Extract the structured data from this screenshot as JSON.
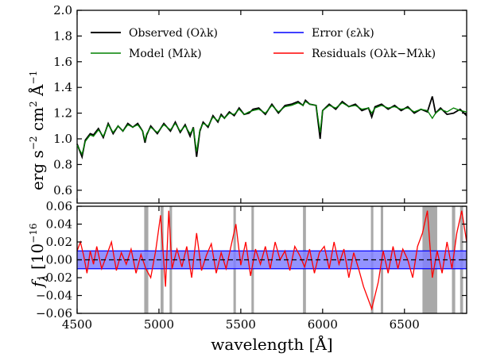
{
  "chart_data": [
    {
      "type": "line",
      "panel": "top",
      "xlim": [
        4500,
        6880
      ],
      "ylim": [
        0.5,
        2.0
      ],
      "ylabel": "erg s−2 cm2 Å−1",
      "ylabel_parts": {
        "unit_erg": "erg s",
        "exp_s": "−2",
        "unit_cm": " cm",
        "exp_cm": "2",
        "unit_A": "  Å",
        "exp_A": "−1"
      },
      "yticks": [
        0.6,
        0.8,
        1.0,
        1.2,
        1.4,
        1.6,
        1.8,
        2.0
      ],
      "ytick_labels": [
        "0.6",
        "0.8",
        "1.0",
        "1.2",
        "1.4",
        "1.6",
        "1.8",
        "2.0"
      ],
      "legend": {
        "placement": "top",
        "entries": [
          {
            "label": "Observed (Oλk)",
            "color": "#000000"
          },
          {
            "label": "Error (ελk)",
            "color": "#0000ff"
          },
          {
            "label": "Model (Mλk)",
            "color": "#008000"
          },
          {
            "label": "Residuals (Oλk−Mλk)",
            "color": "#ff0000"
          }
        ]
      },
      "series": [
        {
          "name": "Observed",
          "color": "#000000",
          "x": [
            4500,
            4530,
            4550,
            4580,
            4600,
            4630,
            4660,
            4690,
            4720,
            4750,
            4780,
            4810,
            4840,
            4870,
            4900,
            4915,
            4925,
            4950,
            4990,
            5030,
            5070,
            5100,
            5130,
            5160,
            5190,
            5210,
            5230,
            5250,
            5270,
            5300,
            5330,
            5360,
            5380,
            5400,
            5430,
            5460,
            5490,
            5520,
            5550,
            5575,
            5610,
            5650,
            5690,
            5730,
            5770,
            5810,
            5850,
            5880,
            5895,
            5920,
            5960,
            5985,
            6000,
            6040,
            6080,
            6120,
            6160,
            6200,
            6240,
            6280,
            6300,
            6320,
            6360,
            6400,
            6440,
            6480,
            6520,
            6560,
            6600,
            6640,
            6670,
            6690,
            6720,
            6760,
            6800,
            6840,
            6880
          ],
          "y": [
            0.96,
            0.86,
            0.99,
            1.04,
            1.03,
            1.08,
            1.01,
            1.12,
            1.04,
            1.1,
            1.06,
            1.12,
            1.09,
            1.12,
            1.06,
            0.97,
            1.03,
            1.1,
            1.04,
            1.12,
            1.06,
            1.13,
            1.05,
            1.11,
            1.02,
            1.09,
            0.86,
            1.06,
            1.13,
            1.09,
            1.18,
            1.13,
            1.19,
            1.16,
            1.21,
            1.18,
            1.24,
            1.19,
            1.2,
            1.23,
            1.24,
            1.19,
            1.27,
            1.2,
            1.26,
            1.27,
            1.29,
            1.26,
            1.3,
            1.27,
            1.26,
            1.0,
            1.22,
            1.27,
            1.23,
            1.29,
            1.25,
            1.27,
            1.22,
            1.24,
            1.17,
            1.25,
            1.27,
            1.23,
            1.26,
            1.22,
            1.25,
            1.2,
            1.23,
            1.21,
            1.33,
            1.2,
            1.24,
            1.19,
            1.2,
            1.23,
            1.18
          ]
        },
        {
          "name": "Model",
          "color": "#008000",
          "x": [
            4500,
            4530,
            4550,
            4580,
            4600,
            4630,
            4660,
            4690,
            4720,
            4750,
            4780,
            4810,
            4840,
            4870,
            4900,
            4915,
            4925,
            4950,
            4990,
            5030,
            5070,
            5100,
            5130,
            5160,
            5190,
            5210,
            5230,
            5250,
            5270,
            5300,
            5330,
            5360,
            5380,
            5400,
            5430,
            5460,
            5490,
            5520,
            5550,
            5575,
            5610,
            5650,
            5690,
            5730,
            5770,
            5810,
            5850,
            5880,
            5895,
            5920,
            5960,
            5985,
            6000,
            6040,
            6080,
            6120,
            6160,
            6200,
            6240,
            6280,
            6300,
            6320,
            6360,
            6400,
            6440,
            6480,
            6520,
            6560,
            6600,
            6640,
            6670,
            6690,
            6720,
            6760,
            6800,
            6840,
            6880
          ],
          "y": [
            0.95,
            0.88,
            0.98,
            1.03,
            1.02,
            1.07,
            1.02,
            1.11,
            1.05,
            1.1,
            1.06,
            1.11,
            1.09,
            1.11,
            1.06,
            0.99,
            1.04,
            1.09,
            1.05,
            1.11,
            1.07,
            1.12,
            1.06,
            1.1,
            1.04,
            1.08,
            0.9,
            1.07,
            1.12,
            1.1,
            1.17,
            1.14,
            1.18,
            1.16,
            1.2,
            1.19,
            1.23,
            1.19,
            1.21,
            1.22,
            1.23,
            1.2,
            1.26,
            1.21,
            1.25,
            1.26,
            1.28,
            1.26,
            1.29,
            1.27,
            1.26,
            1.05,
            1.22,
            1.26,
            1.24,
            1.28,
            1.25,
            1.26,
            1.23,
            1.24,
            1.2,
            1.24,
            1.26,
            1.24,
            1.25,
            1.23,
            1.24,
            1.21,
            1.23,
            1.22,
            1.16,
            1.2,
            1.23,
            1.21,
            1.24,
            1.22,
            1.21
          ]
        }
      ]
    },
    {
      "type": "line",
      "panel": "bottom",
      "xlim": [
        4500,
        6880
      ],
      "ylim": [
        -0.06,
        0.06
      ],
      "xlabel": "wavelength [Å]",
      "ylabel": "fλ [10−16",
      "ylabel_parts": {
        "f": "f",
        "lambda": "λ",
        "bracket": " [10",
        "exp": "−16"
      },
      "xticks": [
        4500,
        5000,
        5500,
        6000,
        6500
      ],
      "xtick_labels": [
        "4500",
        "5000",
        "5500",
        "6000",
        "6500"
      ],
      "yticks": [
        -0.06,
        -0.04,
        -0.02,
        0.0,
        0.02,
        0.04,
        0.06
      ],
      "ytick_labels": [
        "−0.06",
        "−0.04",
        "−0.02",
        "0.00",
        "0.02",
        "0.04",
        "0.06"
      ],
      "error_band": {
        "name": "Error",
        "color": "#0000ff",
        "half_width": 0.01
      },
      "masked_regions": [
        [
          4910,
          4935
        ],
        [
          5010,
          5028
        ],
        [
          5065,
          5080
        ],
        [
          5455,
          5470
        ],
        [
          5565,
          5580
        ],
        [
          5880,
          5898
        ],
        [
          6295,
          6310
        ],
        [
          6355,
          6370
        ],
        [
          6610,
          6700
        ],
        [
          6790,
          6810
        ],
        [
          6840,
          6858
        ]
      ],
      "zero_line": true,
      "series": [
        {
          "name": "Residuals",
          "color": "#ff0000",
          "x": [
            4500,
            4520,
            4540,
            4560,
            4580,
            4600,
            4620,
            4650,
            4680,
            4710,
            4740,
            4770,
            4800,
            4830,
            4860,
            4890,
            4920,
            4950,
            4980,
            5010,
            5040,
            5060,
            5080,
            5110,
            5140,
            5170,
            5200,
            5230,
            5260,
            5290,
            5320,
            5350,
            5380,
            5410,
            5440,
            5470,
            5500,
            5530,
            5560,
            5590,
            5620,
            5650,
            5680,
            5710,
            5740,
            5770,
            5800,
            5830,
            5860,
            5890,
            5920,
            5950,
            5980,
            6010,
            6040,
            6070,
            6100,
            6130,
            6160,
            6190,
            6220,
            6250,
            6280,
            6300,
            6320,
            6340,
            6370,
            6400,
            6430,
            6460,
            6490,
            6520,
            6550,
            6580,
            6610,
            6640,
            6670,
            6700,
            6730,
            6760,
            6790,
            6820,
            6850,
            6880
          ],
          "y": [
            0.01,
            0.02,
            0.005,
            -0.015,
            0.01,
            -0.005,
            0.015,
            -0.01,
            0.005,
            0.02,
            -0.012,
            0.008,
            -0.005,
            0.012,
            -0.015,
            0.006,
            -0.01,
            -0.02,
            0.01,
            0.05,
            -0.03,
            0.055,
            -0.01,
            0.012,
            -0.008,
            0.015,
            -0.02,
            0.03,
            -0.012,
            0.005,
            0.018,
            -0.015,
            0.008,
            -0.01,
            0.015,
            0.04,
            -0.006,
            0.02,
            -0.018,
            0.012,
            -0.005,
            0.015,
            -0.01,
            0.02,
            0.0,
            0.01,
            -0.012,
            0.015,
            0.005,
            -0.008,
            0.012,
            -0.015,
            0.008,
            0.015,
            -0.01,
            0.02,
            -0.005,
            0.012,
            -0.02,
            0.008,
            -0.01,
            -0.03,
            -0.045,
            -0.055,
            -0.04,
            -0.025,
            0.01,
            -0.015,
            0.015,
            -0.01,
            0.012,
            0.0,
            -0.02,
            0.015,
            0.03,
            0.055,
            -0.02,
            0.01,
            -0.015,
            0.02,
            -0.01,
            0.03,
            0.055,
            0.02
          ]
        }
      ]
    }
  ]
}
